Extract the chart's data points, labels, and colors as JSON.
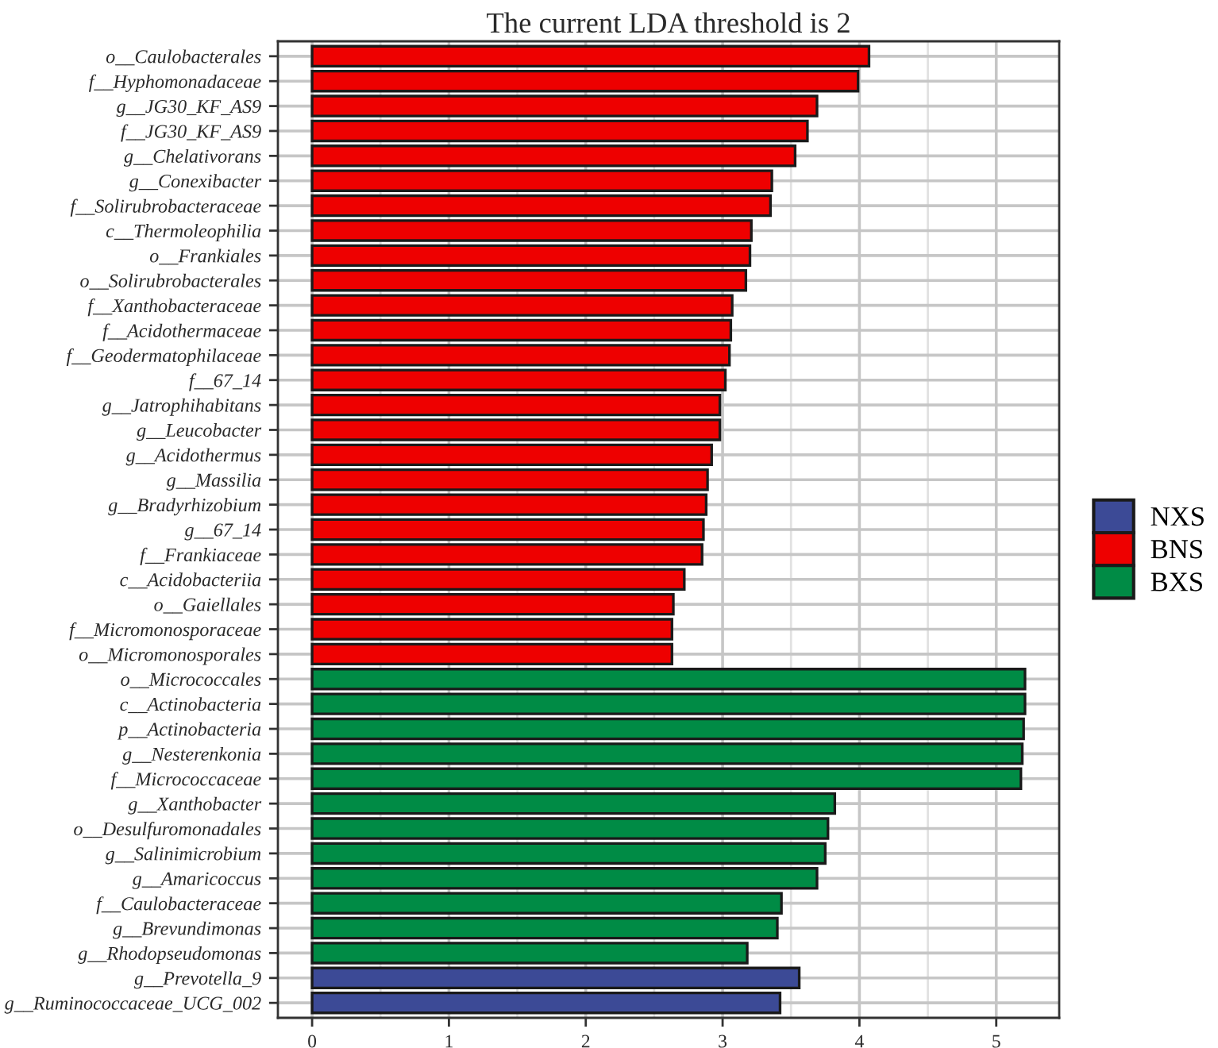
{
  "chart_data": {
    "type": "bar",
    "orientation": "horizontal",
    "title": "The current LDA threshold is 2",
    "categories": [
      "o__Caulobacterales",
      "f__Hyphomonadaceae",
      "g__JG30_KF_AS9",
      "f__JG30_KF_AS9",
      "g__Chelativorans",
      "g__Conexibacter",
      "f__Solirubrobacteraceae",
      "c__Thermoleophilia",
      "o__Frankiales",
      "o__Solirubrobacterales",
      "f__Xanthobacteraceae",
      "f__Acidothermaceae",
      "f__Geodermatophilaceae",
      "f__67_14",
      "g__Jatrophihabitans",
      "g__Leucobacter",
      "g__Acidothermus",
      "g__Massilia",
      "g__Bradyrhizobium",
      "g__67_14",
      "f__Frankiaceae",
      "c__Acidobacteriia",
      "o__Gaiellales",
      "f__Micromonosporaceae",
      "o__Micromonosporales",
      "o__Micrococcales",
      "c__Actinobacteria",
      "p__Actinobacteria",
      "g__Nesterenkonia",
      "f__Micrococcaceae",
      "g__Xanthobacter",
      "o__Desulfuromonadales",
      "g__Salinimicrobium",
      "g__Amaricoccus",
      "f__Caulobacteraceae",
      "g__Brevundimonas",
      "g__Rhodopseudomonas",
      "g__Prevotella_9",
      "g__Ruminococcaceae_UCG_002"
    ],
    "series": [
      {
        "name": "NXS",
        "color": "#3c4a96",
        "values": [
          null,
          null,
          null,
          null,
          null,
          null,
          null,
          null,
          null,
          null,
          null,
          null,
          null,
          null,
          null,
          null,
          null,
          null,
          null,
          null,
          null,
          null,
          null,
          null,
          null,
          null,
          null,
          null,
          null,
          null,
          null,
          null,
          null,
          null,
          null,
          null,
          null,
          3.56,
          3.42
        ]
      },
      {
        "name": "BNS",
        "color": "#ee0000",
        "values": [
          4.07,
          3.99,
          3.69,
          3.62,
          3.53,
          3.36,
          3.35,
          3.21,
          3.2,
          3.17,
          3.07,
          3.06,
          3.05,
          3.02,
          2.98,
          2.98,
          2.92,
          2.89,
          2.88,
          2.86,
          2.85,
          2.72,
          2.64,
          2.63,
          2.63,
          null,
          null,
          null,
          null,
          null,
          null,
          null,
          null,
          null,
          null,
          null,
          null,
          null,
          null
        ]
      },
      {
        "name": "BXS",
        "color": "#008b45",
        "values": [
          null,
          null,
          null,
          null,
          null,
          null,
          null,
          null,
          null,
          null,
          null,
          null,
          null,
          null,
          null,
          null,
          null,
          null,
          null,
          null,
          null,
          null,
          null,
          null,
          null,
          5.21,
          5.21,
          5.2,
          5.19,
          5.18,
          3.82,
          3.77,
          3.75,
          3.69,
          3.43,
          3.4,
          3.18,
          null,
          null
        ]
      }
    ],
    "xlim": [
      -0.25,
      5.46
    ],
    "xticks": [
      0,
      1,
      2,
      3,
      4,
      5
    ],
    "grid": true,
    "legend": "right"
  }
}
